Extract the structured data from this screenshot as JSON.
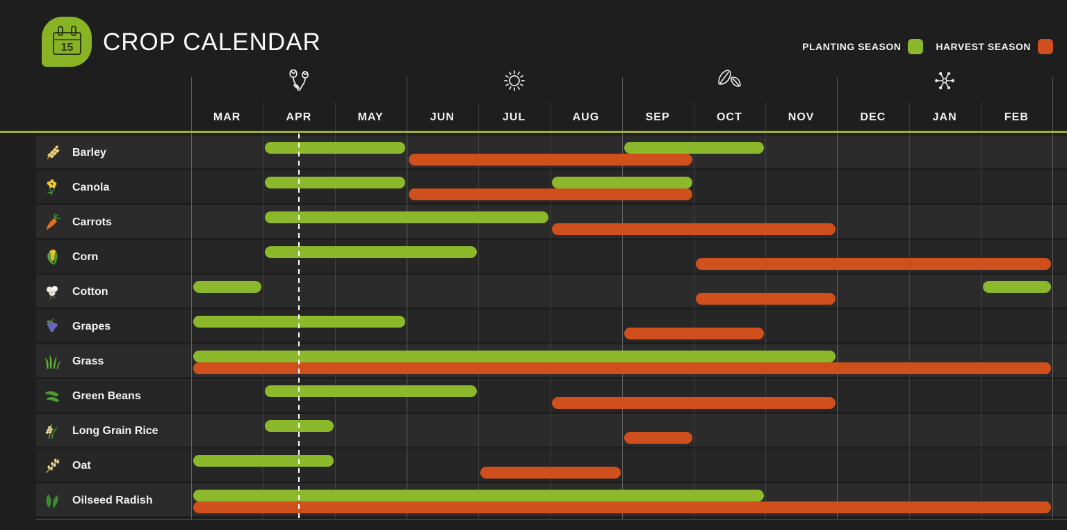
{
  "header": {
    "logo": {
      "icon": "calendar-icon",
      "day": "15"
    },
    "title": "CROP CALENDAR",
    "legend": [
      {
        "key": "planting",
        "label": "PLANTING SEASON",
        "color": "#8cb82c"
      },
      {
        "key": "harvest",
        "label": "HARVEST SEASON",
        "color": "#d0501d"
      }
    ]
  },
  "chart_data": {
    "type": "bar",
    "subtype": "gantt-season-ranges",
    "title": "CROP CALENDAR",
    "x_axis": {
      "months": [
        "MAR",
        "APR",
        "MAY",
        "JUN",
        "JUL",
        "AUG",
        "SEP",
        "OCT",
        "NOV",
        "DEC",
        "JAN",
        "FEB"
      ]
    },
    "season_icons": [
      {
        "name": "spring-flowers-icon",
        "month": "APR"
      },
      {
        "name": "summer-sun-icon",
        "month": "JUL"
      },
      {
        "name": "autumn-leaves-icon",
        "month": "OCT"
      },
      {
        "name": "winter-snowflake-icon",
        "month": "JAN"
      }
    ],
    "today_marker": {
      "month": "APR",
      "fraction": 0.5
    },
    "series_colors": {
      "planting": "#8cb82c",
      "harvest": "#d0501d"
    },
    "legend_position": "top-right",
    "grid": true,
    "crops": [
      {
        "name": "Barley",
        "icon": "barley-icon",
        "planting": [
          [
            "APR",
            "MAY"
          ],
          [
            "SEP",
            "OCT"
          ]
        ],
        "harvest": [
          [
            "JUN",
            "SEP"
          ]
        ]
      },
      {
        "name": "Canola",
        "icon": "canola-icon",
        "planting": [
          [
            "APR",
            "MAY"
          ],
          [
            "AUG",
            "SEP"
          ]
        ],
        "harvest": [
          [
            "JUN",
            "SEP"
          ]
        ]
      },
      {
        "name": "Carrots",
        "icon": "carrot-icon",
        "planting": [
          [
            "APR",
            "JUL"
          ]
        ],
        "harvest": [
          [
            "AUG",
            "NOV"
          ]
        ]
      },
      {
        "name": "Corn",
        "icon": "corn-icon",
        "planting": [
          [
            "APR",
            "JUN"
          ]
        ],
        "harvest": [
          [
            "OCT",
            "FEB"
          ]
        ]
      },
      {
        "name": "Cotton",
        "icon": "cotton-icon",
        "planting": [
          [
            "MAR",
            "MAR"
          ],
          [
            "FEB",
            "FEB"
          ]
        ],
        "harvest": [
          [
            "OCT",
            "NOV"
          ]
        ]
      },
      {
        "name": "Grapes",
        "icon": "grapes-icon",
        "planting": [
          [
            "MAR",
            "MAY"
          ]
        ],
        "harvest": [
          [
            "SEP",
            "OCT"
          ]
        ]
      },
      {
        "name": "Grass",
        "icon": "grass-icon",
        "planting": [
          [
            "MAR",
            "NOV"
          ]
        ],
        "harvest": [
          [
            "MAR",
            "FEB"
          ]
        ]
      },
      {
        "name": "Green Beans",
        "icon": "green-beans-icon",
        "planting": [
          [
            "APR",
            "JUN"
          ]
        ],
        "harvest": [
          [
            "AUG",
            "NOV"
          ]
        ]
      },
      {
        "name": "Long Grain Rice",
        "icon": "rice-plant-icon",
        "planting": [
          [
            "APR",
            "APR"
          ]
        ],
        "harvest": [
          [
            "SEP",
            "SEP"
          ]
        ]
      },
      {
        "name": "Oat",
        "icon": "oat-icon",
        "planting": [
          [
            "MAR",
            "APR"
          ]
        ],
        "harvest": [
          [
            "JUL",
            "AUG"
          ]
        ]
      },
      {
        "name": "Oilseed Radish",
        "icon": "radish-leaves-icon",
        "planting": [
          [
            "MAR",
            "OCT"
          ]
        ],
        "harvest": [
          [
            "MAR",
            "FEB"
          ]
        ]
      }
    ]
  }
}
